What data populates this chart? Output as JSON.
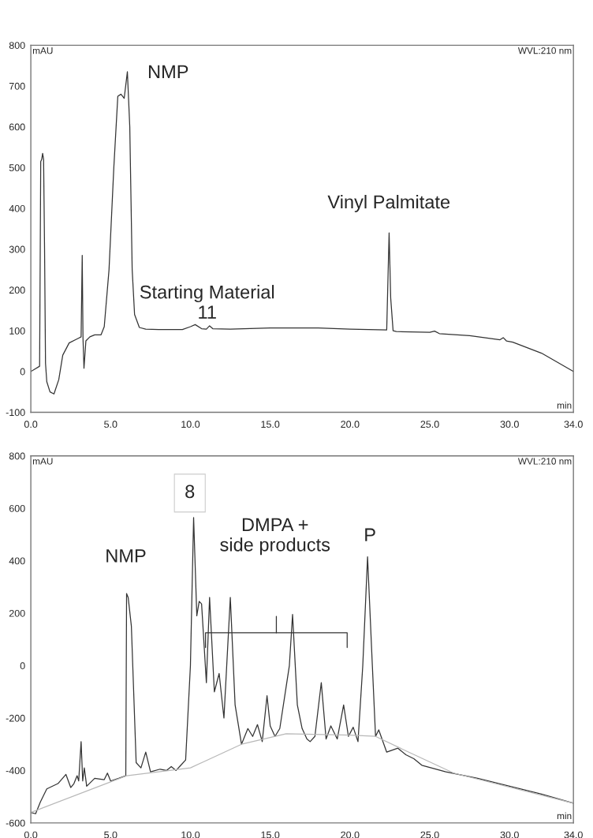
{
  "chart_data": [
    {
      "type": "line",
      "xlabel": "min",
      "ylabel": "mAU",
      "xlim": [
        0,
        34
      ],
      "ylim": [
        -100,
        800
      ],
      "xticks": [
        {
          "value": 0,
          "label": "0.0"
        },
        {
          "value": 5,
          "label": "5.0"
        },
        {
          "value": 10,
          "label": "10.0"
        },
        {
          "value": 15,
          "label": "15.0"
        },
        {
          "value": 20,
          "label": "20.0"
        },
        {
          "value": 25,
          "label": "25.0"
        },
        {
          "value": 30,
          "label": "30.0"
        },
        {
          "value": 34,
          "label": "34.0"
        }
      ],
      "yticks": [
        -100,
        0,
        100,
        200,
        300,
        400,
        500,
        600,
        700,
        800
      ],
      "grid": false,
      "series": [
        {
          "color": "#333333",
          "x": [
            0,
            0.55,
            0.62,
            0.68,
            0.74,
            0.8,
            0.86,
            0.92,
            1.0,
            1.2,
            1.45,
            1.75,
            2.0,
            2.4,
            2.8,
            3.0,
            3.15,
            3.22,
            3.27,
            3.33,
            3.45,
            3.7,
            4.0,
            4.4,
            4.6,
            4.9,
            5.2,
            5.45,
            5.65,
            5.85,
            6.05,
            6.2,
            6.35,
            6.5,
            6.8,
            7.2,
            8.0,
            9.5,
            10.0,
            10.3,
            10.7,
            11.0,
            11.2,
            11.4,
            12.5,
            15.0,
            18.0,
            20.0,
            22.3,
            22.45,
            22.55,
            22.7,
            22.9,
            25.0,
            25.3,
            25.6,
            27.5,
            29.4,
            29.6,
            29.8,
            30.2,
            32.0,
            34.0
          ],
          "values": [
            0,
            13,
            515,
            520,
            535,
            520,
            300,
            20,
            -25,
            -50,
            -55,
            -20,
            40,
            70,
            78,
            82,
            85,
            285,
            80,
            8,
            75,
            85,
            90,
            90,
            110,
            250,
            500,
            675,
            680,
            670,
            735,
            600,
            250,
            140,
            108,
            104,
            103,
            103,
            110,
            115,
            105,
            104,
            112,
            105,
            104,
            107,
            107,
            104,
            102,
            340,
            180,
            100,
            98,
            96,
            99,
            93,
            88,
            78,
            83,
            75,
            72,
            45,
            0
          ]
        }
      ],
      "annotations": [
        "NMP",
        "Starting Material\n11",
        "Vinyl Palmitate",
        "WVL:210 nm"
      ]
    },
    {
      "type": "line",
      "xlabel": "min",
      "ylabel": "mAU",
      "xlim": [
        0,
        34
      ],
      "ylim": [
        -600,
        800
      ],
      "xticks": [
        {
          "value": 0,
          "label": "0.0"
        },
        {
          "value": 5,
          "label": "5.0"
        },
        {
          "value": 10,
          "label": "10.0"
        },
        {
          "value": 15,
          "label": "15.0"
        },
        {
          "value": 20,
          "label": "20.0"
        },
        {
          "value": 25,
          "label": "25.0"
        },
        {
          "value": 30,
          "label": "30.0"
        },
        {
          "value": 34,
          "label": "34.0"
        }
      ],
      "yticks": [
        -600,
        -400,
        -200,
        0,
        200,
        400,
        600,
        800
      ],
      "grid": false,
      "series": [
        {
          "color": "#333333",
          "x": [
            0,
            0.3,
            0.6,
            1.0,
            1.7,
            2.2,
            2.5,
            2.7,
            2.9,
            3.0,
            3.15,
            3.25,
            3.35,
            3.5,
            4.0,
            4.6,
            4.8,
            5.0,
            5.5,
            5.95,
            6.0,
            6.1,
            6.3,
            6.6,
            6.9,
            7.2,
            7.5,
            8.1,
            8.5,
            8.8,
            9.1,
            9.4,
            9.7,
            10.0,
            10.2,
            10.4,
            10.55,
            10.7,
            11.0,
            11.2,
            11.5,
            11.8,
            12.1,
            12.5,
            12.8,
            13.2,
            13.6,
            13.9,
            14.2,
            14.5,
            14.8,
            15.0,
            15.3,
            15.6,
            16.0,
            16.2,
            16.4,
            16.7,
            17.0,
            17.3,
            17.5,
            17.8,
            18.2,
            18.5,
            18.8,
            19.2,
            19.6,
            19.9,
            20.2,
            20.5,
            20.8,
            21.1,
            21.4,
            21.6,
            21.8,
            22.3,
            23.0,
            23.5,
            24.0,
            24.5,
            26.0,
            28.0,
            30.0,
            32.0,
            34.0
          ],
          "values": [
            -560,
            -565,
            -520,
            -470,
            -450,
            -415,
            -465,
            -450,
            -420,
            -440,
            -290,
            -440,
            -390,
            -460,
            -430,
            -435,
            -410,
            -440,
            -430,
            -420,
            275,
            260,
            150,
            -370,
            -390,
            -330,
            -405,
            -395,
            -400,
            -385,
            -400,
            -380,
            -360,
            0,
            565,
            190,
            245,
            235,
            -65,
            260,
            -100,
            -30,
            -200,
            260,
            -150,
            -300,
            -240,
            -270,
            -225,
            -290,
            -115,
            -230,
            -270,
            -240,
            -80,
            0,
            195,
            -150,
            -240,
            -280,
            -290,
            -270,
            -65,
            -280,
            -230,
            -280,
            -150,
            -270,
            -235,
            -290,
            0,
            415,
            0,
            -270,
            -245,
            -330,
            -315,
            -340,
            -355,
            -380,
            -405,
            -430,
            -460,
            -490,
            -525
          ]
        },
        {
          "color": "#b8b8b8",
          "x": [
            0,
            6,
            10,
            13.2,
            16,
            20,
            21.6,
            23.5,
            26.5,
            34
          ],
          "values": [
            -560,
            -420,
            -390,
            -300,
            -260,
            -265,
            -270,
            -325,
            -410,
            -525
          ]
        }
      ],
      "annotations": [
        "NMP",
        "8",
        "DMPA +\nside products",
        "P",
        "WVL:210 nm"
      ]
    }
  ]
}
